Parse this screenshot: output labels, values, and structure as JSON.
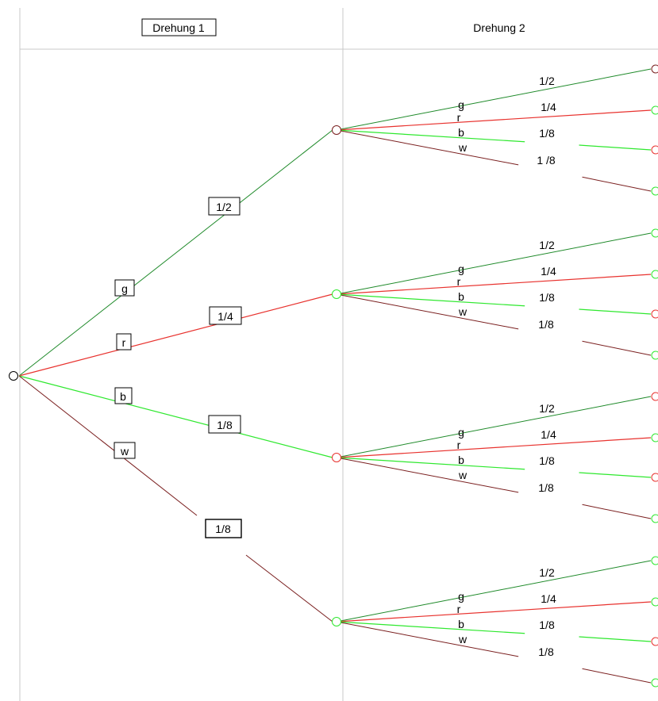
{
  "header": {
    "col1_title": "Drehung 1",
    "col2_title": "Drehung 2"
  },
  "colors": {
    "g": "#1f8a2a",
    "r": "#e8322e",
    "b": "#2ee82e",
    "w": "#7a1f1f",
    "grid": "#c8c8c8"
  },
  "stage1": {
    "branches": [
      {
        "color_key": "g",
        "letter": "g",
        "probability": "1/2"
      },
      {
        "color_key": "r",
        "letter": "r",
        "probability": "1/4"
      },
      {
        "color_key": "b",
        "letter": "b",
        "probability": "1/8"
      },
      {
        "color_key": "w",
        "letter": "w",
        "probability": "1/8"
      }
    ]
  },
  "stage2": {
    "groups": [
      {
        "node_color_key": "w",
        "branches": [
          {
            "color_key": "g",
            "letter": "g",
            "probability": "1/2",
            "end_color_key": "w"
          },
          {
            "color_key": "r",
            "letter": "r",
            "probability": "1/4",
            "end_color_key": "b"
          },
          {
            "color_key": "b",
            "letter": "b",
            "probability": "1/8",
            "end_color_key": "r"
          },
          {
            "color_key": "w",
            "letter": "w",
            "probability": "1 /8",
            "end_color_key": "b"
          }
        ]
      },
      {
        "node_color_key": "b",
        "branches": [
          {
            "color_key": "g",
            "letter": "g",
            "probability": "1/2",
            "end_color_key": "b"
          },
          {
            "color_key": "r",
            "letter": "r",
            "probability": "1/4",
            "end_color_key": "b"
          },
          {
            "color_key": "b",
            "letter": "b",
            "probability": "1/8",
            "end_color_key": "r"
          },
          {
            "color_key": "w",
            "letter": "w",
            "probability": "1/8",
            "end_color_key": "b"
          }
        ]
      },
      {
        "node_color_key": "r",
        "branches": [
          {
            "color_key": "g",
            "letter": "g",
            "probability": "1/2",
            "end_color_key": "r"
          },
          {
            "color_key": "r",
            "letter": "r",
            "probability": "1/4",
            "end_color_key": "b"
          },
          {
            "color_key": "b",
            "letter": "b",
            "probability": "1/8",
            "end_color_key": "r"
          },
          {
            "color_key": "w",
            "letter": "w",
            "probability": "1/8",
            "end_color_key": "b"
          }
        ]
      },
      {
        "node_color_key": "b",
        "branches": [
          {
            "color_key": "g",
            "letter": "g",
            "probability": "1/2",
            "end_color_key": "b"
          },
          {
            "color_key": "r",
            "letter": "r",
            "probability": "1/4",
            "end_color_key": "b"
          },
          {
            "color_key": "b",
            "letter": "b",
            "probability": "1/8",
            "end_color_key": "r"
          },
          {
            "color_key": "w",
            "letter": "w",
            "probability": "1/8",
            "end_color_key": "b"
          }
        ]
      }
    ]
  }
}
